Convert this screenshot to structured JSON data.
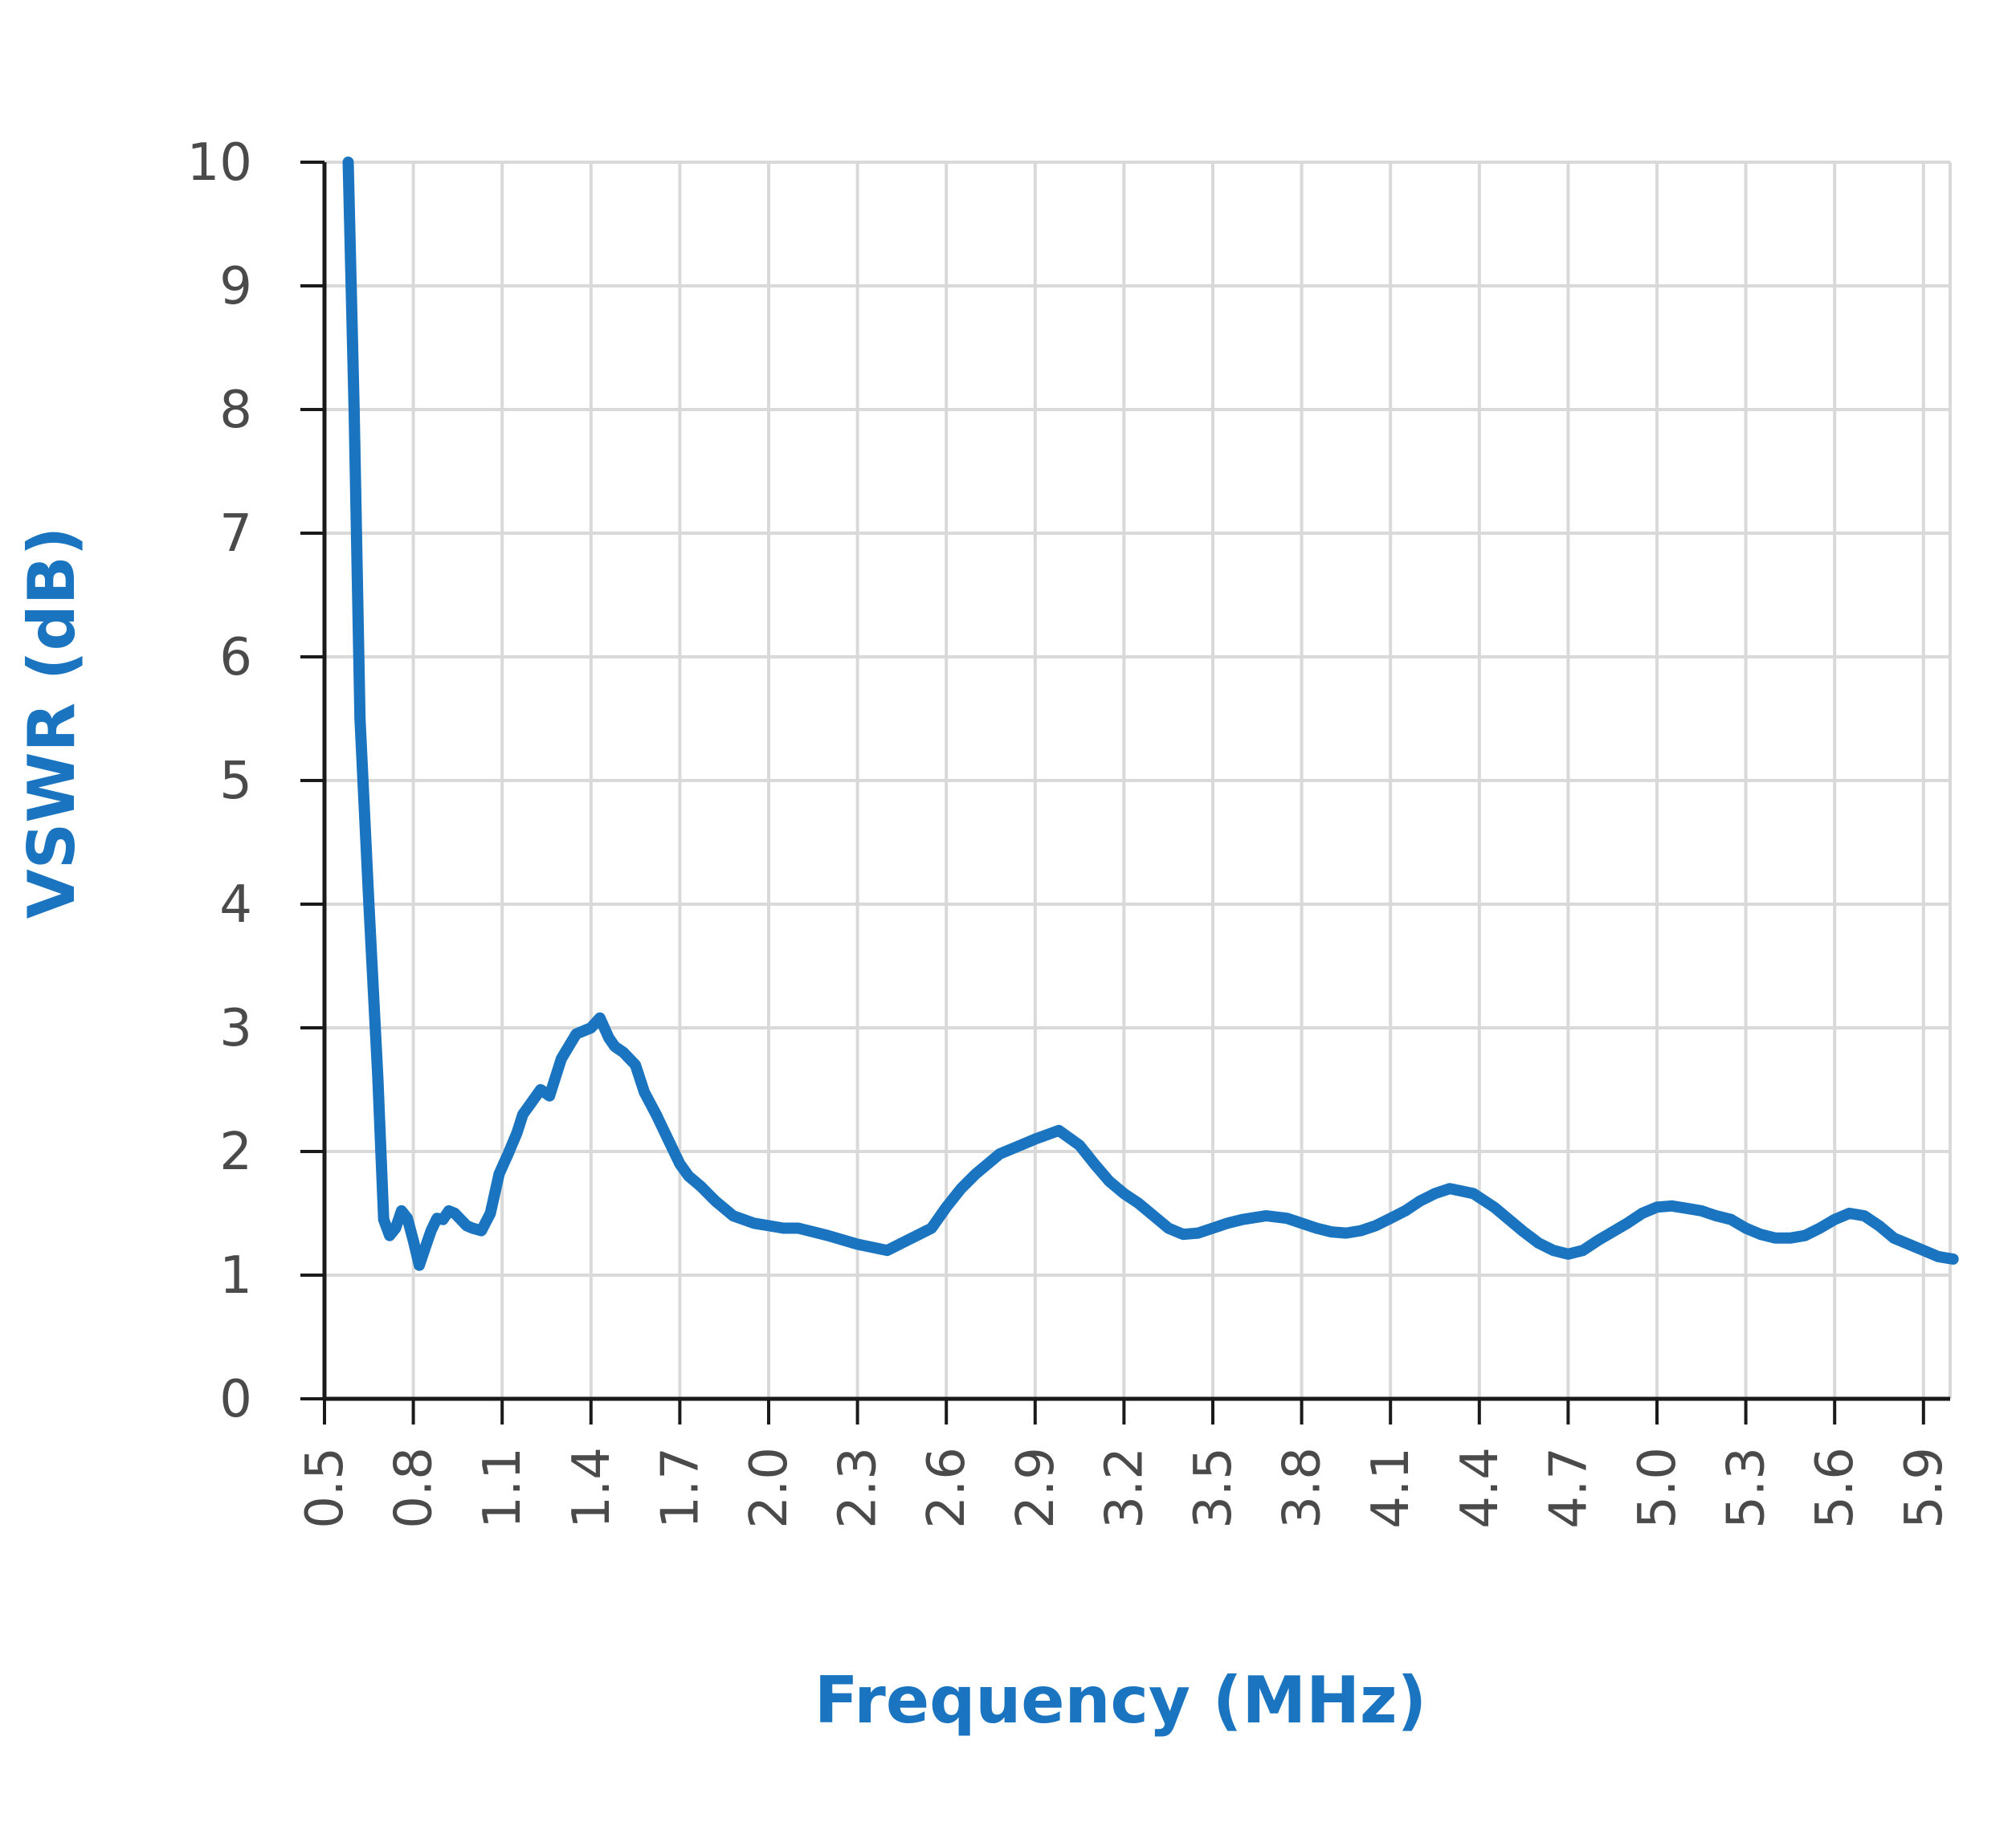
{
  "colors": {
    "series": "#1a74bf",
    "grid": "#d9d9d9",
    "axis": "#1a1a1a",
    "tick_text": "#4a4a4a",
    "axis_title": "#1a74bf"
  },
  "chart_data": {
    "type": "line",
    "title": "",
    "xlabel": "Frequency (MHz)",
    "ylabel": "VSWR (dB)",
    "xlim": [
      0.5,
      6.0
    ],
    "ylim": [
      0,
      10
    ],
    "grid": true,
    "legend": "none",
    "x_ticks": [
      "0.5",
      "0.8",
      "1.1",
      "1.4",
      "1.7",
      "2.0",
      "2.3",
      "2.6",
      "2.9",
      "3.2",
      "3.5",
      "3.8",
      "4.1",
      "4.4",
      "4.7",
      "5.0",
      "5.3",
      "5.6",
      "5.9"
    ],
    "y_ticks": [
      "0",
      "1",
      "2",
      "3",
      "4",
      "5",
      "6",
      "7",
      "8",
      "9",
      "10"
    ],
    "series": [
      {
        "x": [
          0.58,
          0.6,
          0.62,
          0.65,
          0.68,
          0.7,
          0.72,
          0.74,
          0.76,
          0.78,
          0.8,
          0.82,
          0.84,
          0.86,
          0.88,
          0.9,
          0.92,
          0.94,
          0.96,
          0.98,
          1.0,
          1.03,
          1.06,
          1.09,
          1.12,
          1.15,
          1.17,
          1.2,
          1.23,
          1.26,
          1.3,
          1.35,
          1.4,
          1.43,
          1.46,
          1.48,
          1.51,
          1.55,
          1.58,
          1.62,
          1.67,
          1.7,
          1.73,
          1.77,
          1.82,
          1.88,
          1.95,
          2.0,
          2.05,
          2.1,
          2.2,
          2.3,
          2.4,
          2.45,
          2.55,
          2.6,
          2.65,
          2.7,
          2.78,
          2.85,
          2.9,
          2.98,
          3.05,
          3.1,
          3.15,
          3.2,
          3.25,
          3.3,
          3.35,
          3.4,
          3.45,
          3.5,
          3.55,
          3.6,
          3.68,
          3.75,
          3.8,
          3.85,
          3.9,
          3.95,
          4.0,
          4.05,
          4.1,
          4.15,
          4.2,
          4.25,
          4.3,
          4.38,
          4.45,
          4.5,
          4.55,
          4.6,
          4.65,
          4.7,
          4.75,
          4.8,
          4.85,
          4.9,
          4.95,
          5.0,
          5.05,
          5.1,
          5.15,
          5.2,
          5.25,
          5.3,
          5.35,
          5.4,
          5.45,
          5.5,
          5.55,
          5.6,
          5.65,
          5.7,
          5.75,
          5.8,
          5.85,
          5.9,
          5.95,
          6.0
        ],
        "y": [
          10.0,
          8.0,
          5.5,
          4.0,
          2.6,
          1.45,
          1.32,
          1.38,
          1.52,
          1.46,
          1.28,
          1.08,
          1.22,
          1.36,
          1.46,
          1.45,
          1.52,
          1.5,
          1.45,
          1.4,
          1.38,
          1.36,
          1.5,
          1.82,
          1.98,
          2.15,
          2.3,
          2.4,
          2.5,
          2.45,
          2.75,
          2.95,
          3.0,
          3.08,
          2.92,
          2.85,
          2.8,
          2.7,
          2.48,
          2.3,
          2.05,
          1.9,
          1.8,
          1.72,
          1.6,
          1.48,
          1.42,
          1.4,
          1.38,
          1.38,
          1.32,
          1.25,
          1.2,
          1.26,
          1.38,
          1.55,
          1.7,
          1.82,
          1.98,
          2.05,
          2.1,
          2.17,
          2.05,
          1.9,
          1.76,
          1.66,
          1.58,
          1.48,
          1.38,
          1.33,
          1.34,
          1.38,
          1.42,
          1.45,
          1.48,
          1.46,
          1.42,
          1.38,
          1.35,
          1.34,
          1.36,
          1.4,
          1.46,
          1.52,
          1.6,
          1.66,
          1.7,
          1.66,
          1.55,
          1.45,
          1.35,
          1.26,
          1.2,
          1.17,
          1.2,
          1.28,
          1.35,
          1.42,
          1.5,
          1.55,
          1.56,
          1.54,
          1.52,
          1.48,
          1.45,
          1.38,
          1.33,
          1.3,
          1.3,
          1.32,
          1.38,
          1.45,
          1.5,
          1.48,
          1.4,
          1.3,
          1.25,
          1.2,
          1.15,
          1.13
        ]
      }
    ]
  }
}
